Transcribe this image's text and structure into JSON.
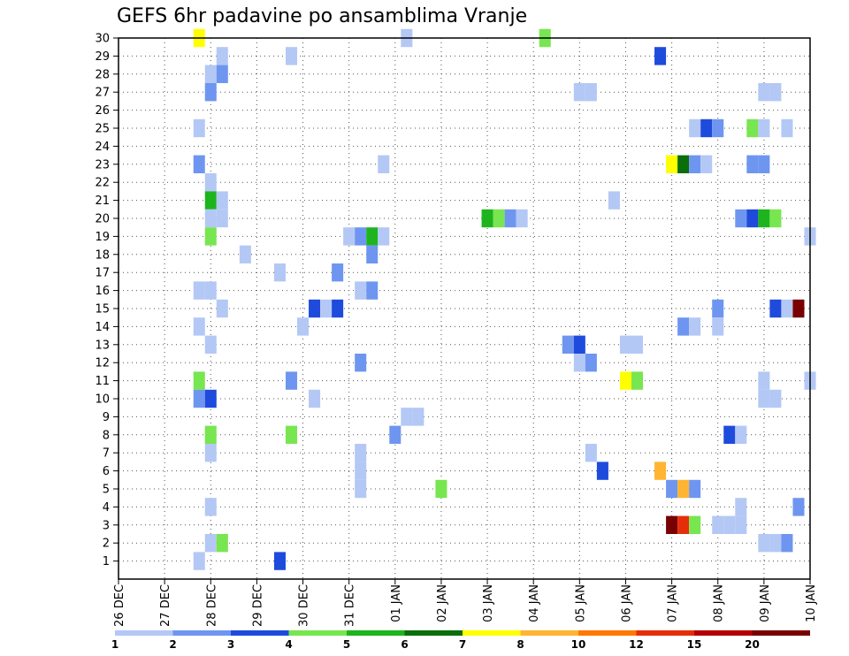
{
  "chart_data": {
    "type": "heatmap",
    "title": "GEFS 6hr padavine po ansamblima Vranje",
    "xlabel": "",
    "ylabel": "",
    "x_ticks": [
      "26 DEC",
      "27 DEC",
      "28 DEC",
      "29 DEC",
      "30 DEC",
      "31 DEC",
      "01 JAN",
      "02 JAN",
      "03 JAN",
      "04 JAN",
      "05 JAN",
      "06 JAN",
      "07 JAN",
      "08 JAN",
      "09 JAN",
      "10 JAN"
    ],
    "x_range_6h_steps": [
      0,
      60
    ],
    "y_ticks": [
      1,
      2,
      3,
      4,
      5,
      6,
      7,
      8,
      9,
      10,
      11,
      12,
      13,
      14,
      15,
      16,
      17,
      18,
      19,
      20,
      21,
      22,
      23,
      24,
      25,
      26,
      27,
      28,
      29,
      30
    ],
    "y_range": [
      0,
      30
    ],
    "grid": "dotted",
    "colorbar": {
      "labels": [
        "1",
        "2",
        "3",
        "4",
        "5",
        "6",
        "7",
        "8",
        "10",
        "12",
        "15",
        "20"
      ],
      "colors": [
        "#b4c8f5",
        "#6e96f0",
        "#1e4bdc",
        "#78e650",
        "#1eb41e",
        "#0a6e0a",
        "#ffff00",
        "#ffb432",
        "#ff7800",
        "#e62d0a",
        "#b40000",
        "#780000"
      ]
    },
    "cells": [
      [
        7,
        30,
        6
      ],
      [
        25,
        30,
        0
      ],
      [
        37,
        30,
        3
      ],
      [
        9,
        29,
        0
      ],
      [
        15,
        29,
        0
      ],
      [
        47,
        29,
        2
      ],
      [
        8,
        28,
        0
      ],
      [
        9,
        28,
        1
      ],
      [
        8,
        27,
        1
      ],
      [
        40,
        27,
        0
      ],
      [
        41,
        27,
        0
      ],
      [
        56,
        27,
        0
      ],
      [
        57,
        27,
        0
      ],
      [
        7,
        25,
        0
      ],
      [
        50,
        25,
        0
      ],
      [
        51,
        25,
        2
      ],
      [
        52,
        25,
        1
      ],
      [
        55,
        25,
        3
      ],
      [
        56,
        25,
        0
      ],
      [
        58,
        25,
        0
      ],
      [
        7,
        23,
        1
      ],
      [
        23,
        23,
        0
      ],
      [
        48,
        23,
        6
      ],
      [
        49,
        23,
        5
      ],
      [
        50,
        23,
        1
      ],
      [
        51,
        23,
        0
      ],
      [
        55,
        23,
        1
      ],
      [
        56,
        23,
        1
      ],
      [
        8,
        22,
        0
      ],
      [
        8,
        21,
        4
      ],
      [
        9,
        21,
        0
      ],
      [
        43,
        21,
        0
      ],
      [
        8,
        20,
        0
      ],
      [
        9,
        20,
        0
      ],
      [
        32,
        20,
        4
      ],
      [
        33,
        20,
        3
      ],
      [
        34,
        20,
        1
      ],
      [
        35,
        20,
        0
      ],
      [
        54,
        20,
        1
      ],
      [
        55,
        20,
        2
      ],
      [
        56,
        20,
        4
      ],
      [
        57,
        20,
        3
      ],
      [
        8,
        19,
        3
      ],
      [
        20,
        19,
        0
      ],
      [
        21,
        19,
        1
      ],
      [
        22,
        19,
        4
      ],
      [
        23,
        19,
        0
      ],
      [
        60,
        19,
        0
      ],
      [
        11,
        18,
        0
      ],
      [
        22,
        18,
        1
      ],
      [
        14,
        17,
        0
      ],
      [
        19,
        17,
        1
      ],
      [
        7,
        16,
        0
      ],
      [
        8,
        16,
        0
      ],
      [
        21,
        16,
        0
      ],
      [
        22,
        16,
        1
      ],
      [
        9,
        15,
        0
      ],
      [
        17,
        15,
        2
      ],
      [
        18,
        15,
        0
      ],
      [
        19,
        15,
        2
      ],
      [
        52,
        15,
        1
      ],
      [
        57,
        15,
        2
      ],
      [
        58,
        15,
        0
      ],
      [
        59,
        15,
        11
      ],
      [
        7,
        14,
        0
      ],
      [
        16,
        14,
        0
      ],
      [
        49,
        14,
        1
      ],
      [
        50,
        14,
        0
      ],
      [
        52,
        14,
        0
      ],
      [
        8,
        13,
        0
      ],
      [
        39,
        13,
        1
      ],
      [
        40,
        13,
        2
      ],
      [
        44,
        13,
        0
      ],
      [
        45,
        13,
        0
      ],
      [
        21,
        12,
        1
      ],
      [
        40,
        12,
        0
      ],
      [
        41,
        12,
        1
      ],
      [
        7,
        11,
        3
      ],
      [
        15,
        11,
        1
      ],
      [
        44,
        11,
        6
      ],
      [
        45,
        11,
        3
      ],
      [
        56,
        11,
        0
      ],
      [
        60,
        11,
        0
      ],
      [
        7,
        10,
        1
      ],
      [
        8,
        10,
        2
      ],
      [
        17,
        10,
        0
      ],
      [
        56,
        10,
        0
      ],
      [
        57,
        10,
        0
      ],
      [
        25,
        9,
        0
      ],
      [
        26,
        9,
        0
      ],
      [
        8,
        8,
        3
      ],
      [
        15,
        8,
        3
      ],
      [
        24,
        8,
        1
      ],
      [
        53,
        8,
        2
      ],
      [
        54,
        8,
        0
      ],
      [
        8,
        7,
        0
      ],
      [
        21,
        7,
        0
      ],
      [
        41,
        7,
        0
      ],
      [
        21,
        6,
        0
      ],
      [
        42,
        6,
        2
      ],
      [
        47,
        6,
        7
      ],
      [
        21,
        5,
        0
      ],
      [
        28,
        5,
        3
      ],
      [
        48,
        5,
        1
      ],
      [
        49,
        5,
        7
      ],
      [
        50,
        5,
        1
      ],
      [
        8,
        4,
        0
      ],
      [
        54,
        4,
        0
      ],
      [
        59,
        4,
        1
      ],
      [
        48,
        3,
        11
      ],
      [
        49,
        3,
        9
      ],
      [
        50,
        3,
        3
      ],
      [
        52,
        3,
        0
      ],
      [
        53,
        3,
        0
      ],
      [
        54,
        3,
        0
      ],
      [
        8,
        2,
        0
      ],
      [
        9,
        2,
        3
      ],
      [
        56,
        2,
        0
      ],
      [
        57,
        2,
        0
      ],
      [
        58,
        2,
        1
      ],
      [
        7,
        1,
        0
      ],
      [
        14,
        1,
        2
      ]
    ]
  }
}
